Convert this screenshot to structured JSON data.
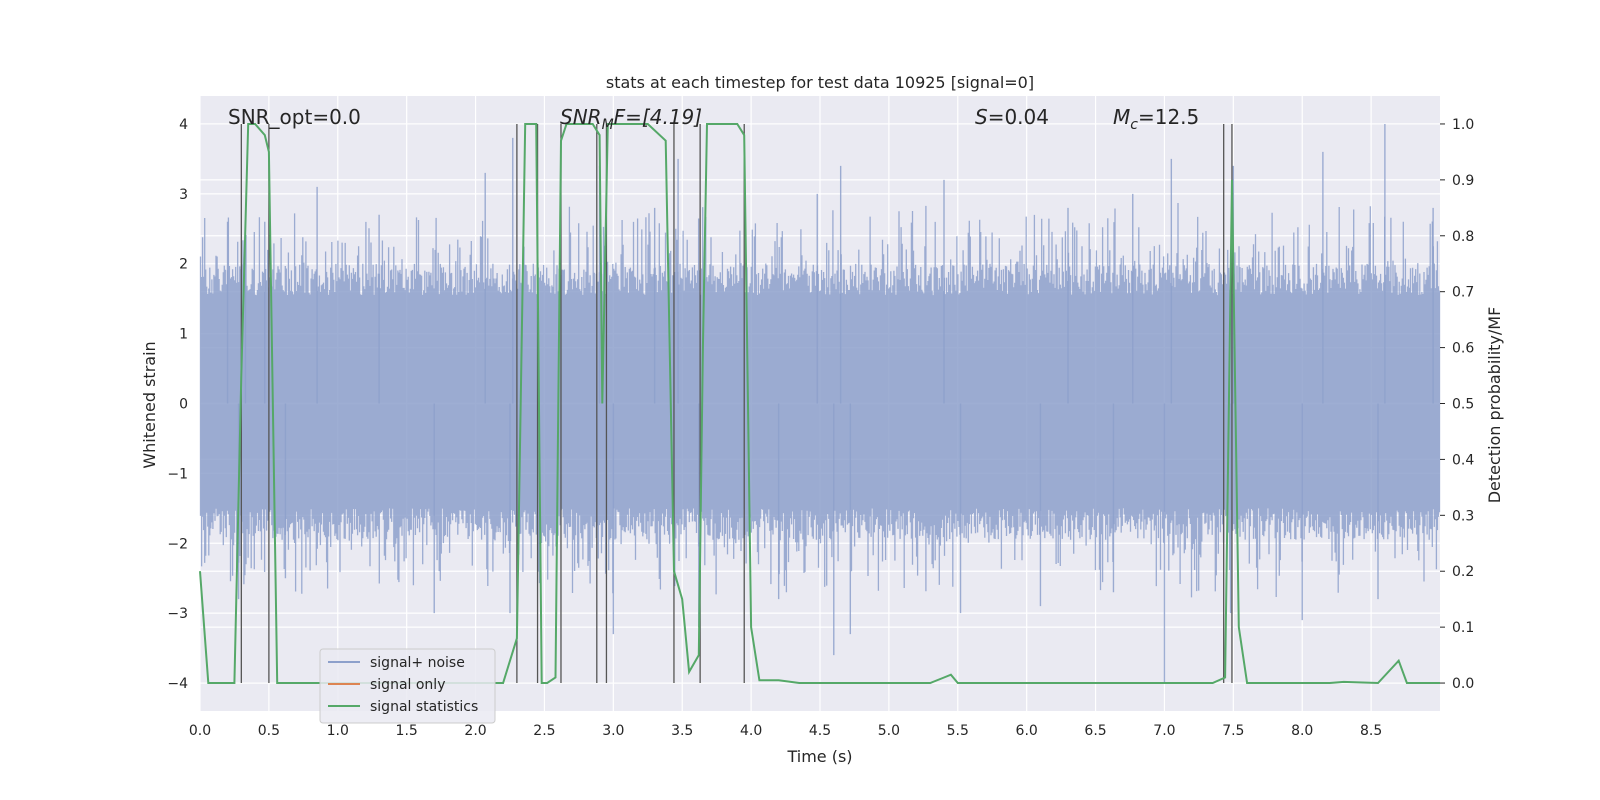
{
  "chart_data": {
    "type": "line",
    "title": "stats at each timestep for test data 10925 [signal=0]",
    "xlabel": "Time (s)",
    "ylabel_left": "Whitened strain",
    "ylabel_right": "Detection probability/MF",
    "xlim": [
      0,
      9.0
    ],
    "ylim_left": [
      -4.4,
      4.4
    ],
    "ylim_right": [
      -0.05,
      1.05
    ],
    "grid": true,
    "legend_position": "lower-left",
    "x_ticks": [
      0.0,
      0.5,
      1.0,
      1.5,
      2.0,
      2.5,
      3.0,
      3.5,
      4.0,
      4.5,
      5.0,
      5.5,
      6.0,
      6.5,
      7.0,
      7.5,
      8.0,
      8.5
    ],
    "x_tick_labels": [
      "0.0",
      "0.5",
      "1.0",
      "1.5",
      "2.0",
      "2.5",
      "3.0",
      "3.5",
      "4.0",
      "4.5",
      "5.0",
      "5.5",
      "6.0",
      "6.5",
      "7.0",
      "7.5",
      "8.0",
      "8.5"
    ],
    "y_left_ticks": [
      -4,
      -3,
      -2,
      -1,
      0,
      1,
      2,
      3,
      4
    ],
    "y_left_tick_labels": [
      "−4",
      "−3",
      "−2",
      "−1",
      "0",
      "1",
      "2",
      "3",
      "4"
    ],
    "y_right_ticks": [
      0.0,
      0.1,
      0.2,
      0.3,
      0.4,
      0.5,
      0.6,
      0.7,
      0.8,
      0.9,
      1.0
    ],
    "y_right_tick_labels": [
      "0.0",
      "0.1",
      "0.2",
      "0.3",
      "0.4",
      "0.5",
      "0.6",
      "0.7",
      "0.8",
      "0.9",
      "1.0"
    ],
    "annotations": {
      "snr_opt": "SNR_opt=0.0",
      "snr_mf_prefix": "SNR",
      "snr_mf_sub": "M",
      "snr_mf_suffix": "F=[4.19]",
      "s_label": "S",
      "s_value": "=0.04",
      "mc_label": "M",
      "mc_sub": "c",
      "mc_value": "=12.5"
    },
    "legend": [
      {
        "label": "signal+ noise",
        "color": "#8da0cb"
      },
      {
        "label": "signal only",
        "color": "#dd8452"
      },
      {
        "label": "signal statistics",
        "color": "#55a868"
      }
    ],
    "series": [
      {
        "name": "signal+ noise",
        "axis": "left",
        "color": "#8da0cb",
        "style": "dense noise, mostly within ±1.8, peaks to ±4",
        "envelope_peaks": [
          {
            "t": 0.2,
            "v": 2.6
          },
          {
            "t": 0.33,
            "v": 2.4
          },
          {
            "t": 0.47,
            "v": 2.6
          },
          {
            "t": 0.85,
            "v": 3.1
          },
          {
            "t": 1.3,
            "v": 2.7
          },
          {
            "t": 2.07,
            "v": 3.3
          },
          {
            "t": 2.27,
            "v": 3.8
          },
          {
            "t": 2.9,
            "v": 3.4
          },
          {
            "t": 3.3,
            "v": 2.8
          },
          {
            "t": 3.47,
            "v": 3.5
          },
          {
            "t": 4.48,
            "v": 3.0
          },
          {
            "t": 4.65,
            "v": 3.4
          },
          {
            "t": 5.4,
            "v": 3.2
          },
          {
            "t": 6.3,
            "v": 2.8
          },
          {
            "t": 6.77,
            "v": 3.0
          },
          {
            "t": 7.05,
            "v": 3.5
          },
          {
            "t": 7.5,
            "v": 3.4
          },
          {
            "t": 8.15,
            "v": 3.6
          },
          {
            "t": 8.6,
            "v": 4.0
          },
          {
            "t": 8.95,
            "v": 2.8
          }
        ],
        "envelope_troughs": [
          {
            "t": 0.28,
            "v": -2.8
          },
          {
            "t": 0.62,
            "v": -2.5
          },
          {
            "t": 1.7,
            "v": -3.0
          },
          {
            "t": 2.25,
            "v": -3.0
          },
          {
            "t": 3.0,
            "v": -3.3
          },
          {
            "t": 3.62,
            "v": -3.2
          },
          {
            "t": 4.2,
            "v": -2.8
          },
          {
            "t": 4.6,
            "v": -3.6
          },
          {
            "t": 4.72,
            "v": -3.3
          },
          {
            "t": 5.52,
            "v": -3.0
          },
          {
            "t": 6.1,
            "v": -2.9
          },
          {
            "t": 6.63,
            "v": -2.7
          },
          {
            "t": 7.0,
            "v": -4.0
          },
          {
            "t": 7.48,
            "v": -3.0
          },
          {
            "t": 8.0,
            "v": -3.1
          },
          {
            "t": 8.55,
            "v": -2.8
          }
        ]
      },
      {
        "name": "signal only",
        "axis": "left",
        "color": "#dd8452",
        "x": [
          0,
          9.0
        ],
        "y": [
          0,
          0
        ]
      },
      {
        "name": "signal statistics",
        "axis": "right",
        "color": "#55a868",
        "x": [
          0.0,
          0.06,
          0.12,
          0.25,
          0.3,
          0.35,
          0.4,
          0.47,
          0.5,
          0.56,
          0.8,
          1.2,
          1.6,
          2.0,
          2.2,
          2.3,
          2.36,
          2.42,
          2.44,
          2.48,
          2.52,
          2.58,
          2.62,
          2.66,
          2.72,
          2.78,
          2.85,
          2.9,
          2.92,
          2.96,
          3.0,
          3.1,
          3.25,
          3.38,
          3.44,
          3.5,
          3.55,
          3.62,
          3.65,
          3.68,
          3.73,
          3.8,
          3.9,
          3.95,
          4.0,
          4.06,
          4.2,
          4.35,
          4.6,
          5.0,
          5.3,
          5.4,
          5.45,
          5.5,
          5.8,
          6.3,
          6.9,
          7.35,
          7.44,
          7.49,
          7.54,
          7.6,
          7.9,
          8.2,
          8.3,
          8.55,
          8.7,
          8.76,
          9.0
        ],
        "y": [
          0.2,
          0.0,
          0.0,
          0.0,
          0.55,
          1.0,
          1.0,
          0.98,
          0.95,
          0.0,
          0.0,
          0.0,
          0.0,
          0.0,
          0.0,
          0.08,
          1.0,
          1.0,
          1.0,
          0.0,
          0.0,
          0.01,
          0.97,
          1.0,
          1.0,
          1.0,
          1.0,
          0.98,
          0.5,
          1.0,
          1.0,
          1.0,
          1.0,
          0.97,
          0.2,
          0.15,
          0.02,
          0.05,
          0.6,
          1.0,
          1.0,
          1.0,
          1.0,
          0.98,
          0.1,
          0.005,
          0.005,
          0.0,
          0.0,
          0.0,
          0.0,
          0.01,
          0.015,
          0.0,
          0.0,
          0.0,
          0.0,
          0.0,
          0.01,
          0.9,
          0.1,
          0.0,
          0.0,
          0.0,
          0.002,
          0.0,
          0.04,
          0.0,
          0.0
        ]
      }
    ],
    "vertical_markers_s": [
      0.3,
      0.5,
      2.3,
      2.45,
      2.62,
      2.88,
      2.95,
      3.44,
      3.63,
      3.95,
      7.43,
      7.49
    ]
  }
}
